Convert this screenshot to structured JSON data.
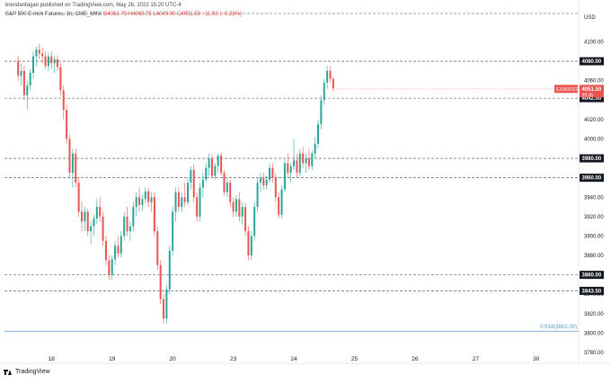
{
  "header": {
    "author_line": "brendanfagan published on TradingView.com, May 26, 2022 15:20 UTC-4",
    "symbol": "S&P 500 E-mini Futures, 1h, CME_MINI",
    "open": "O4062.75",
    "high": "H4063.75",
    "low": "L4049.00",
    "close": "C4051.50",
    "change": "−11.50 (−0.28%)"
  },
  "footer": {
    "brand": "TradingView"
  },
  "colors": {
    "up": "#26a69a",
    "down": "#ef5350",
    "fib": "#5b9bd5",
    "label_bg": "#131722"
  },
  "chart_data": {
    "type": "candlestick",
    "currency": "USD",
    "ylim": [
      3780,
      4120
    ],
    "y_ticks": [
      "4100.00",
      "4080.00",
      "4060.00",
      "4040.00",
      "4020.00",
      "4000.00",
      "3980.00",
      "3960.00",
      "3940.00",
      "3920.00",
      "3900.00",
      "3880.00",
      "3860.00",
      "3840.00",
      "3820.00",
      "3800.00",
      "3780.00"
    ],
    "x_ticks": [
      {
        "label": "18",
        "x": 11
      },
      {
        "label": "19",
        "x": 31
      },
      {
        "label": "20",
        "x": 51
      },
      {
        "label": "23",
        "x": 71
      },
      {
        "label": "24",
        "x": 91
      },
      {
        "label": "25",
        "x": 111
      },
      {
        "label": "26",
        "x": 131
      },
      {
        "label": "27",
        "x": 151
      },
      {
        "label": "30",
        "x": 171
      }
    ],
    "x_range": [
      -4.5,
      185
    ],
    "levels": [
      {
        "value": "4080.00",
        "y": 4080
      },
      {
        "value": "4042.00",
        "y": 4042
      },
      {
        "value": "3980.00",
        "y": 3980
      },
      {
        "value": "3960.00",
        "y": 3960
      },
      {
        "value": "3860.00",
        "y": 3860
      },
      {
        "value": "3843.50",
        "y": 3843.5
      }
    ],
    "top_line": 4117,
    "fib": {
      "label": "0.618(3802.00)",
      "y": 3802
    },
    "price_label": {
      "symbol": "ESM2022",
      "price": "4051.50",
      "countdown": "39:36",
      "y": 4051.5
    },
    "candles": [
      [
        4080,
        4085,
        4060,
        4065
      ],
      [
        4065,
        4078,
        4055,
        4070
      ],
      [
        4070,
        4075,
        4040,
        4045
      ],
      [
        4045,
        4060,
        4030,
        4055
      ],
      [
        4055,
        4072,
        4050,
        4068
      ],
      [
        4068,
        4090,
        4062,
        4085
      ],
      [
        4085,
        4095,
        4075,
        4092
      ],
      [
        4092,
        4098,
        4082,
        4088
      ],
      [
        4088,
        4094,
        4078,
        4085
      ],
      [
        4085,
        4090,
        4072,
        4075
      ],
      [
        4075,
        4088,
        4070,
        4085
      ],
      [
        4085,
        4090,
        4072,
        4078
      ],
      [
        4078,
        4086,
        4068,
        4082
      ],
      [
        4082,
        4086,
        4070,
        4074
      ],
      [
        4074,
        4078,
        4045,
        4050
      ],
      [
        4050,
        4055,
        4020,
        4030
      ],
      [
        4030,
        4035,
        3995,
        4000
      ],
      [
        4000,
        4005,
        3960,
        3965
      ],
      [
        3965,
        3990,
        3950,
        3985
      ],
      [
        3985,
        3990,
        3950,
        3955
      ],
      [
        3955,
        3960,
        3920,
        3925
      ],
      [
        3925,
        3935,
        3905,
        3915
      ],
      [
        3915,
        3930,
        3905,
        3925
      ],
      [
        3925,
        3928,
        3900,
        3905
      ],
      [
        3905,
        3915,
        3892,
        3910
      ],
      [
        3910,
        3922,
        3900,
        3918
      ],
      [
        3918,
        3938,
        3912,
        3930
      ],
      [
        3930,
        3940,
        3915,
        3920
      ],
      [
        3920,
        3925,
        3890,
        3895
      ],
      [
        3895,
        3900,
        3870,
        3875
      ],
      [
        3875,
        3880,
        3855,
        3860
      ],
      [
        3860,
        3880,
        3855,
        3876
      ],
      [
        3876,
        3895,
        3870,
        3890
      ],
      [
        3890,
        3900,
        3878,
        3882
      ],
      [
        3882,
        3905,
        3878,
        3900
      ],
      [
        3900,
        3925,
        3895,
        3920
      ],
      [
        3920,
        3930,
        3900,
        3905
      ],
      [
        3905,
        3915,
        3895,
        3910
      ],
      [
        3910,
        3935,
        3905,
        3930
      ],
      [
        3930,
        3945,
        3920,
        3940
      ],
      [
        3940,
        3950,
        3925,
        3932
      ],
      [
        3932,
        3942,
        3926,
        3938
      ],
      [
        3938,
        3950,
        3934,
        3946
      ],
      [
        3946,
        3950,
        3930,
        3935
      ],
      [
        3935,
        3945,
        3925,
        3940
      ],
      [
        3940,
        3945,
        3900,
        3905
      ],
      [
        3905,
        3910,
        3865,
        3870
      ],
      [
        3870,
        3875,
        3830,
        3835
      ],
      [
        3835,
        3840,
        3810,
        3815
      ],
      [
        3815,
        3850,
        3810,
        3845
      ],
      [
        3845,
        3890,
        3840,
        3885
      ],
      [
        3885,
        3930,
        3880,
        3925
      ],
      [
        3925,
        3950,
        3915,
        3945
      ],
      [
        3945,
        3950,
        3925,
        3930
      ],
      [
        3930,
        3945,
        3925,
        3940
      ],
      [
        3940,
        3955,
        3930,
        3935
      ],
      [
        3935,
        3960,
        3932,
        3955
      ],
      [
        3955,
        3972,
        3948,
        3968
      ],
      [
        3968,
        3974,
        3935,
        3940
      ],
      [
        3940,
        3945,
        3915,
        3920
      ],
      [
        3920,
        3955,
        3915,
        3950
      ],
      [
        3950,
        3965,
        3940,
        3958
      ],
      [
        3958,
        3975,
        3955,
        3970
      ],
      [
        3970,
        3985,
        3962,
        3980
      ],
      [
        3980,
        3984,
        3960,
        3962
      ],
      [
        3962,
        3975,
        3958,
        3972
      ],
      [
        3972,
        3985,
        3965,
        3983
      ],
      [
        3983,
        3986,
        3962,
        3965
      ],
      [
        3965,
        3968,
        3942,
        3945
      ],
      [
        3945,
        3960,
        3940,
        3955
      ],
      [
        3955,
        3958,
        3930,
        3935
      ],
      [
        3935,
        3940,
        3920,
        3925
      ],
      [
        3925,
        3942,
        3920,
        3938
      ],
      [
        3938,
        3945,
        3915,
        3920
      ],
      [
        3920,
        3935,
        3912,
        3930
      ],
      [
        3930,
        3934,
        3900,
        3905
      ],
      [
        3905,
        3910,
        3875,
        3880
      ],
      [
        3880,
        3905,
        3875,
        3900
      ],
      [
        3900,
        3935,
        3895,
        3930
      ],
      [
        3930,
        3960,
        3925,
        3955
      ],
      [
        3955,
        3965,
        3945,
        3960
      ],
      [
        3960,
        3965,
        3948,
        3952
      ],
      [
        3952,
        3962,
        3948,
        3958
      ],
      [
        3958,
        3975,
        3955,
        3970
      ],
      [
        3970,
        3975,
        3955,
        3960
      ],
      [
        3960,
        3964,
        3935,
        3940
      ],
      [
        3940,
        3945,
        3918,
        3922
      ],
      [
        3922,
        3952,
        3918,
        3948
      ],
      [
        3948,
        3978,
        3945,
        3975
      ],
      [
        3975,
        3985,
        3960,
        3965
      ],
      [
        3965,
        3975,
        3955,
        3972
      ],
      [
        3972,
        4000,
        3968,
        3978
      ],
      [
        3978,
        3985,
        3960,
        3965
      ],
      [
        3965,
        3990,
        3962,
        3985
      ],
      [
        3985,
        3992,
        3970,
        3975
      ],
      [
        3975,
        3985,
        3965,
        3980
      ],
      [
        3980,
        3990,
        3968,
        3972
      ],
      [
        3972,
        3988,
        3968,
        3985
      ],
      [
        3985,
        4002,
        3980,
        3995
      ],
      [
        3995,
        4020,
        3990,
        4015
      ],
      [
        4015,
        4045,
        4010,
        4040
      ],
      [
        4040,
        4062,
        4035,
        4058
      ],
      [
        4058,
        4075,
        4052,
        4070
      ],
      [
        4070,
        4075,
        4058,
        4062
      ],
      [
        4062,
        4064,
        4049,
        4052
      ]
    ]
  }
}
